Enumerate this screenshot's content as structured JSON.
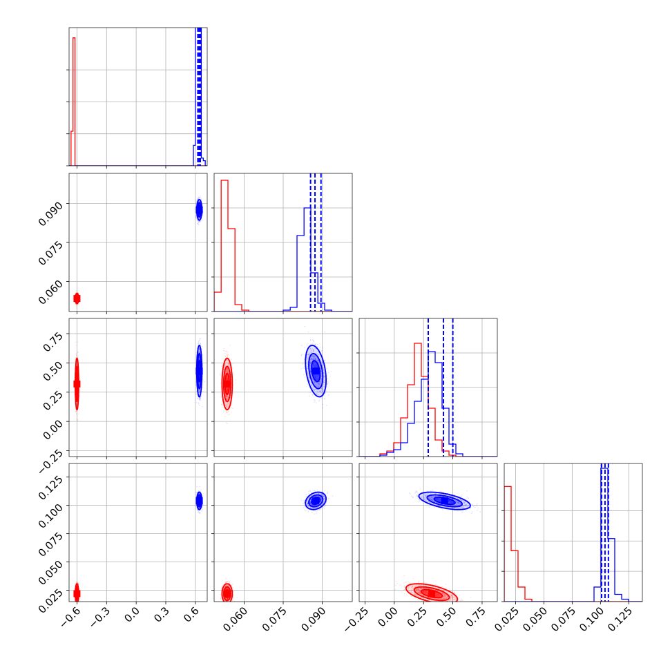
{
  "chart_data": {
    "type": "corner",
    "grid": true,
    "colors": {
      "series_a": "#ff0000",
      "series_b": "#0000ff"
    },
    "series": [
      {
        "color": "#ff0000",
        "means": [
          -0.6,
          0.0535,
          0.32,
          0.022
        ],
        "stds": [
          0.008,
          0.0009,
          0.1,
          0.004
        ],
        "corr": {
          "2_3": -0.55
        },
        "quantile_lines": false
      },
      {
        "color": "#0000ff",
        "means": [
          0.64,
          0.0875,
          0.43,
          0.104
        ],
        "stds": [
          0.012,
          0.0018,
          0.1,
          0.0035
        ],
        "corr": {
          "1_2": -0.35,
          "2_3": -0.55,
          "1_3": 0.25
        },
        "quantile_lines": true,
        "quantiles": [
          [
            0.625,
            0.638,
            0.65
          ],
          [
            0.0855,
            0.0872,
            0.0895
          ],
          [
            0.29,
            0.42,
            0.5
          ],
          [
            0.101,
            0.104,
            0.107
          ]
        ]
      }
    ],
    "parameters": [
      {
        "range": [
          -0.68,
          0.72
        ],
        "ticks": [
          -0.6,
          -0.3,
          0.0,
          0.3,
          0.6
        ],
        "tick_labels": [
          "−0.6",
          "−0.3",
          "0.0",
          "0.3",
          "0.6"
        ]
      },
      {
        "range": [
          0.0485,
          0.1015
        ],
        "ticks": [
          0.06,
          0.075,
          0.09
        ],
        "tick_labels": [
          "0.060",
          "0.075",
          "0.090"
        ]
      },
      {
        "range": [
          -0.3,
          0.88
        ],
        "ticks": [
          -0.25,
          0.0,
          0.25,
          0.5,
          0.75
        ],
        "tick_labels": [
          "−0.25",
          "0.00",
          "0.25",
          "0.50",
          "0.75"
        ]
      },
      {
        "range": [
          0.015,
          0.137
        ],
        "ticks": [
          0.025,
          0.05,
          0.075,
          0.1,
          0.125
        ],
        "tick_labels": [
          "0.025",
          "0.050",
          "0.075",
          "0.100",
          "0.125"
        ]
      }
    ],
    "histograms": [
      {
        "bin_edges": [
          -0.68,
          -0.66,
          -0.64,
          -0.62,
          -0.6,
          -0.58,
          -0.56,
          -0.54,
          -0.52,
          -0.5,
          -0.48,
          -0.46,
          -0.44,
          -0.42,
          -0.4,
          -0.38,
          -0.36,
          -0.34,
          -0.32,
          -0.3,
          -0.28,
          -0.26,
          -0.24,
          -0.22,
          -0.2,
          -0.18,
          -0.16,
          -0.14,
          -0.12,
          -0.1,
          -0.08,
          -0.06,
          -0.04,
          -0.02,
          0.0,
          0.02,
          0.04,
          0.06,
          0.08,
          0.1,
          0.12,
          0.14,
          0.16,
          0.18,
          0.2,
          0.22,
          0.24,
          0.26,
          0.28,
          0.3,
          0.32,
          0.34,
          0.36,
          0.38,
          0.4,
          0.42,
          0.44,
          0.46,
          0.48,
          0.5,
          0.52,
          0.54,
          0.56,
          0.58,
          0.6,
          0.62,
          0.64,
          0.66,
          0.68,
          0.7,
          0.72
        ],
        "counts": [
          [
            0,
            0.27,
            1.0,
            0,
            0,
            0,
            0,
            0,
            0,
            0,
            0,
            0,
            0,
            0,
            0,
            0,
            0,
            0,
            0,
            0,
            0,
            0,
            0,
            0,
            0,
            0,
            0,
            0,
            0,
            0,
            0,
            0,
            0,
            0,
            0,
            0,
            0,
            0,
            0,
            0,
            0,
            0,
            0,
            0,
            0,
            0,
            0,
            0,
            0,
            0,
            0,
            0,
            0,
            0,
            0,
            0,
            0,
            0,
            0,
            0,
            0,
            0,
            0,
            0,
            0,
            0,
            0,
            0,
            0,
            0,
            0
          ],
          [
            0,
            0,
            0,
            0,
            0,
            0,
            0,
            0,
            0,
            0,
            0,
            0,
            0,
            0,
            0,
            0,
            0,
            0,
            0,
            0,
            0,
            0,
            0,
            0,
            0,
            0,
            0,
            0,
            0,
            0,
            0,
            0,
            0,
            0,
            0,
            0,
            0,
            0,
            0,
            0,
            0,
            0,
            0,
            0,
            0,
            0,
            0,
            0,
            0,
            0,
            0,
            0,
            0,
            0,
            0,
            0,
            0,
            0,
            0,
            0,
            0,
            0,
            0,
            0.16,
            1.1,
            1.1,
            1.1,
            0.06,
            0.04,
            0,
            0
          ]
        ]
      },
      {
        "bin_edges": [
          0.0485,
          0.0512,
          0.0538,
          0.0565,
          0.0591,
          0.0618,
          0.0644,
          0.0671,
          0.0697,
          0.0724,
          0.075,
          0.0777,
          0.0803,
          0.083,
          0.0856,
          0.0883,
          0.0909,
          0.0936,
          0.0962,
          0.0989,
          0.1015
        ],
        "counts": [
          [
            0.14,
            0.95,
            0.6,
            0.05,
            0.01,
            0,
            0,
            0,
            0,
            0,
            0,
            0,
            0,
            0,
            0,
            0,
            0,
            0,
            0,
            0
          ],
          [
            0,
            0,
            0,
            0,
            0,
            0,
            0,
            0,
            0,
            0,
            0.01,
            0.03,
            0.55,
            0.75,
            0.28,
            0.06,
            0.01,
            0,
            0,
            0
          ]
        ]
      },
      {
        "bin_edges": [
          -0.3,
          -0.241,
          -0.182,
          -0.123,
          -0.064,
          -0.005,
          0.054,
          0.113,
          0.172,
          0.231,
          0.29,
          0.349,
          0.408,
          0.467,
          0.526,
          0.585,
          0.644,
          0.703,
          0.762,
          0.821,
          0.88
        ],
        "counts": [
          [
            0.0,
            0.0,
            0.0,
            0.02,
            0.04,
            0.1,
            0.28,
            0.52,
            0.82,
            0.58,
            0.35,
            0.12,
            0.04,
            0.01,
            0,
            0,
            0,
            0,
            0,
            0
          ],
          [
            0.0,
            0.0,
            0.0,
            0.01,
            0.03,
            0.05,
            0.1,
            0.24,
            0.4,
            0.56,
            0.76,
            0.68,
            0.35,
            0.09,
            0.02,
            0,
            0,
            0,
            0,
            0
          ]
        ]
      },
      {
        "bin_edges": [
          0.015,
          0.0211,
          0.0272,
          0.0333,
          0.0394,
          0.0455,
          0.0516,
          0.0577,
          0.0638,
          0.0699,
          0.076,
          0.0821,
          0.0882,
          0.0943,
          0.1004,
          0.1065,
          0.1126,
          0.1187,
          0.1248,
          0.1309,
          0.137
        ],
        "counts": [
          [
            0.95,
            0.42,
            0.12,
            0.02,
            0,
            0,
            0,
            0,
            0,
            0,
            0,
            0,
            0,
            0,
            0,
            0,
            0,
            0,
            0,
            0
          ],
          [
            0,
            0,
            0,
            0,
            0,
            0,
            0,
            0,
            0,
            0,
            0,
            0,
            0,
            0.12,
            1.1,
            0.52,
            0.06,
            0.02,
            0,
            0
          ]
        ]
      }
    ],
    "hist_ylim": [
      [
        0,
        1.08
      ],
      [
        0,
        1.0
      ],
      [
        0,
        1.0
      ],
      [
        0,
        1.14
      ]
    ],
    "hist_yticks": [
      0.25,
      0.5,
      0.75
    ]
  }
}
